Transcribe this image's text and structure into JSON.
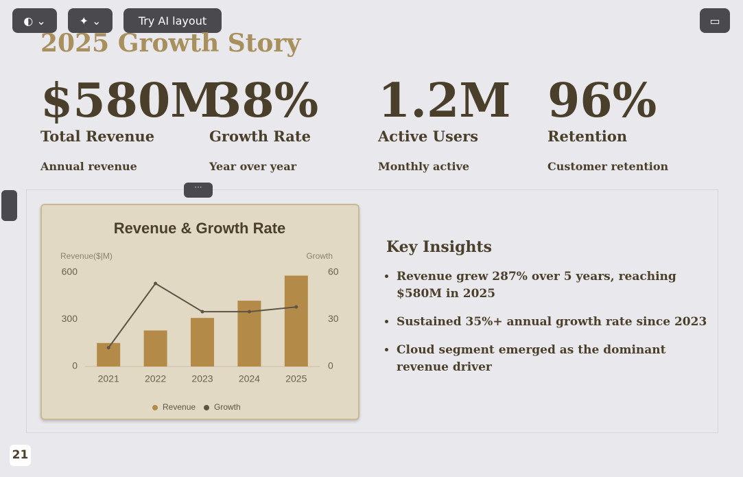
{
  "toolbar": {
    "ai_button": "Try AI layout"
  },
  "slide": {
    "title": "2025 Growth Story",
    "stats": [
      {
        "value": "$580M",
        "label": "Total Revenue",
        "description": "Annual revenue"
      },
      {
        "value": "38%",
        "label": "Growth Rate",
        "description": "Year over year"
      },
      {
        "value": "1.2M",
        "label": "Active Users",
        "description": "Monthly active"
      },
      {
        "value": "96%",
        "label": "Retention",
        "description": "Customer retention"
      }
    ],
    "insights": {
      "title": "Key Insights",
      "items": [
        "Revenue grew 287% over 5 years, reaching $580M in 2025",
        "Sustained 35%+ annual growth rate since 2023",
        "Cloud segment emerged as the dominant revenue driver"
      ]
    },
    "page_number": "21"
  },
  "chart_data": {
    "type": "bar",
    "title": "Revenue & Growth Rate",
    "y_label": "Revenue($|M)",
    "y2_label": "Growth",
    "categories": [
      "2021",
      "2022",
      "2023",
      "2024",
      "2025"
    ],
    "series": [
      {
        "name": "Revenue",
        "color": "#b38a48",
        "values": [
          150,
          230,
          310,
          420,
          580
        ]
      },
      {
        "name": "Growth",
        "color": "#5e5446",
        "type": "line",
        "axis": "y2",
        "values": [
          12,
          53,
          35,
          35,
          38
        ]
      }
    ],
    "ylim": [
      0,
      600
    ],
    "yticks": [
      0,
      300,
      600
    ],
    "y2lim": [
      0,
      60
    ],
    "y2ticks": [
      0,
      30,
      60
    ],
    "grid": false,
    "legend": "bottom"
  }
}
